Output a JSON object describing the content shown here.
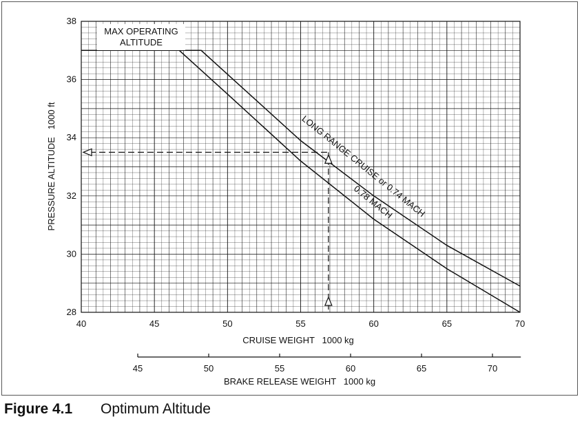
{
  "figure": {
    "number": "Figure 4.1",
    "title": "Optimum Altitude"
  },
  "chart_data": {
    "type": "line",
    "xlabel": "CRUISE WEIGHT   1000 kg",
    "ylabel": "PRESSURE ALTITUDE   1000 ft",
    "xlim": [
      40,
      70
    ],
    "ylim": [
      28,
      38
    ],
    "x_ticks": [
      40,
      45,
      50,
      55,
      60,
      65,
      70
    ],
    "y_ticks": [
      28,
      30,
      32,
      34,
      36,
      38
    ],
    "grid": true,
    "secondary_axis": {
      "label": "BRAKE RELEASE WEIGHT   1000 kg",
      "ticks": [
        45,
        50,
        55,
        60,
        65,
        70
      ],
      "range": [
        45,
        72
      ]
    },
    "max_altitude": {
      "label_line1": "MAX OPERATING",
      "label_line2": "ALTITUDE",
      "value": 37
    },
    "series": [
      {
        "name": "LONG RANGE CRUISE  or  0.74 MACH",
        "points": [
          [
            48.2,
            37
          ],
          [
            55,
            33.9
          ],
          [
            60,
            32.0
          ],
          [
            65,
            30.3
          ],
          [
            70,
            28.9
          ]
        ]
      },
      {
        "name": "0.78 MACH",
        "points": [
          [
            46.7,
            37
          ],
          [
            50,
            35.5
          ],
          [
            55,
            33.2
          ],
          [
            60,
            31.2
          ],
          [
            65,
            29.5
          ],
          [
            70,
            28.0
          ]
        ]
      }
    ],
    "example": {
      "cruise_weight": 56.9,
      "pressure_altitude": 33.5
    }
  }
}
